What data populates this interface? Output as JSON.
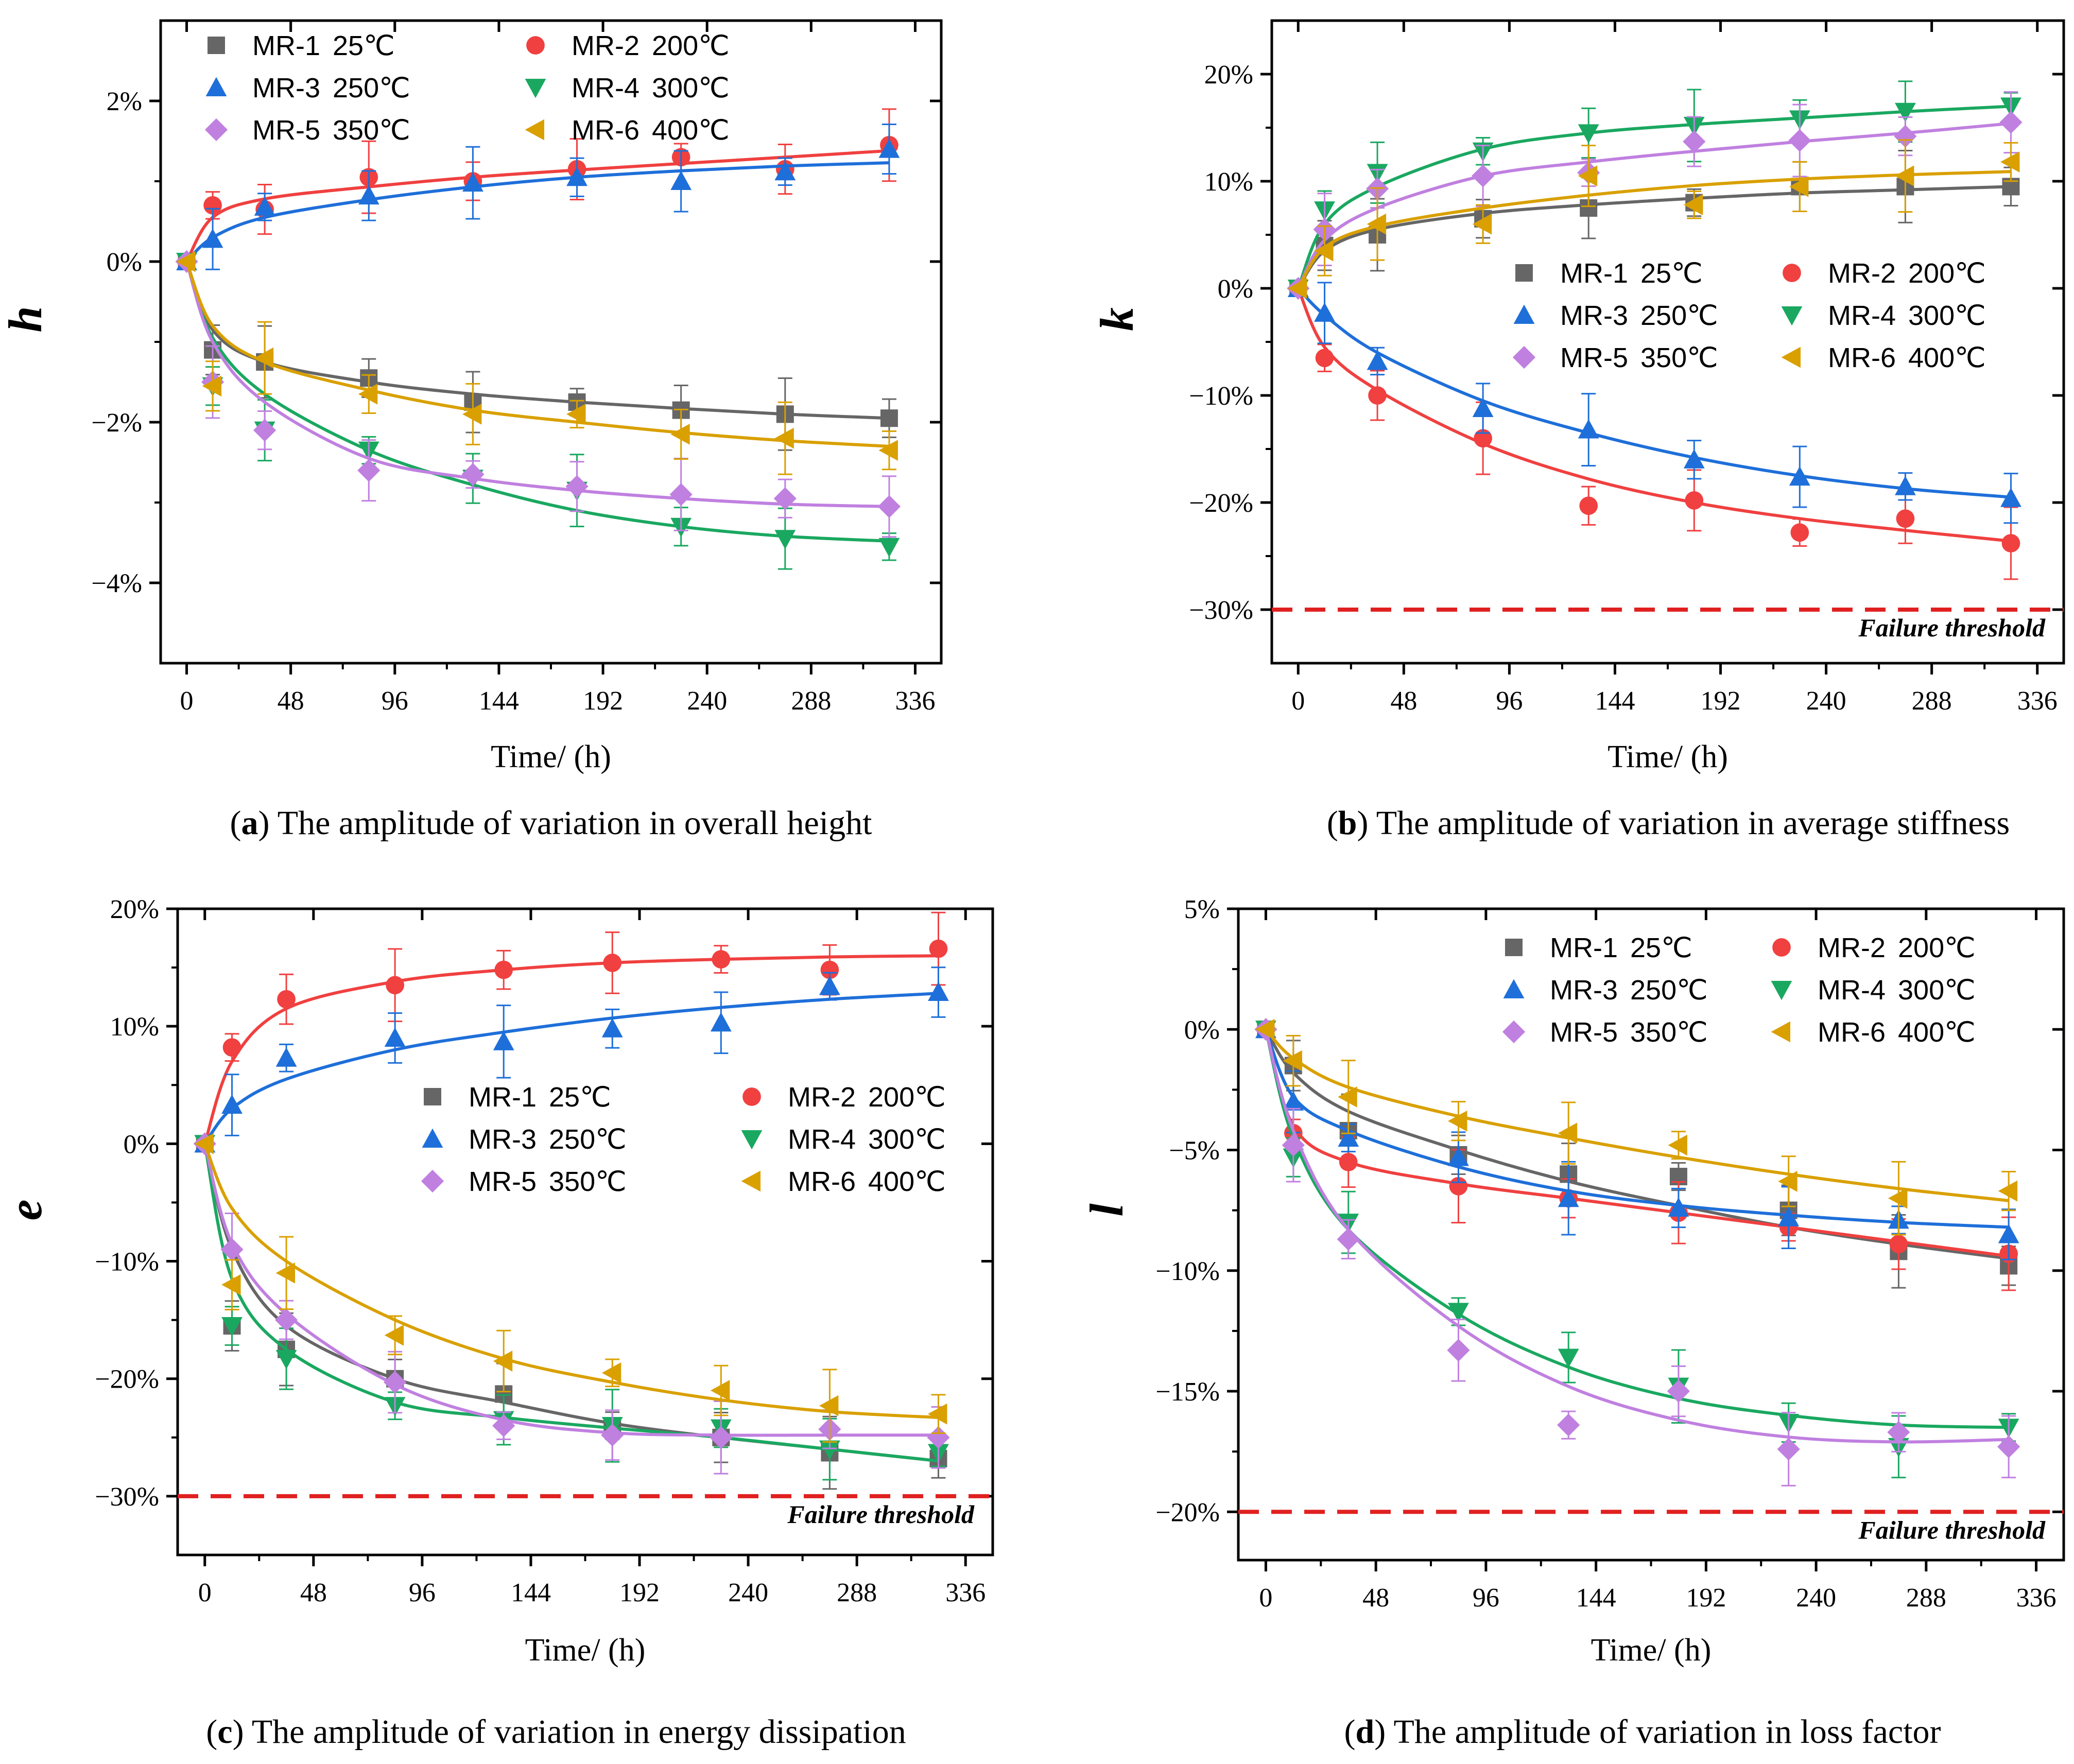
{
  "series_meta": [
    {
      "id": "MR-1",
      "temp": "25℃",
      "color": "#666666",
      "marker": "square"
    },
    {
      "id": "MR-2",
      "temp": "200℃",
      "color": "#f04040",
      "marker": "circle"
    },
    {
      "id": "MR-3",
      "temp": "250℃",
      "color": "#1e6fd9",
      "marker": "triangle-up"
    },
    {
      "id": "MR-4",
      "temp": "300℃",
      "color": "#1aa860",
      "marker": "triangle-down"
    },
    {
      "id": "MR-5",
      "temp": "350℃",
      "color": "#c080e0",
      "marker": "diamond"
    },
    {
      "id": "MR-6",
      "temp": "400℃",
      "color": "#d9a000",
      "marker": "triangle-left"
    }
  ],
  "threshold_color": "#e02020",
  "chart_data": [
    {
      "type": "scatter",
      "panel": "a",
      "caption_letter": "a",
      "caption_text": " The amplitude of variation in overall height",
      "ylabel": "h",
      "xlabel": "Time/ (h)",
      "xlim": [
        -12,
        348
      ],
      "ylim": [
        -5,
        3
      ],
      "xticks": [
        0,
        48,
        96,
        144,
        192,
        240,
        288,
        336
      ],
      "yticks": [
        2,
        0,
        -2,
        -4
      ],
      "ytick_labels": [
        "2%",
        "0%",
        "−2%",
        "−4%"
      ],
      "threshold": null,
      "threshold_label": "",
      "x": [
        0,
        12,
        36,
        84,
        132,
        180,
        228,
        276,
        324
      ],
      "series": [
        {
          "name": "MR-1",
          "values": [
            0,
            -1.1,
            -1.25,
            -1.45,
            -1.75,
            -1.75,
            -1.85,
            -1.9,
            -1.95
          ],
          "fit": [
            0,
            -0.85,
            -1.25,
            -1.5,
            -1.65,
            -1.75,
            -1.83,
            -1.9,
            -1.95
          ]
        },
        {
          "name": "MR-2",
          "values": [
            0,
            0.7,
            0.65,
            1.05,
            1.0,
            1.15,
            1.3,
            1.15,
            1.45
          ],
          "fit": [
            0,
            0.55,
            0.78,
            0.93,
            1.05,
            1.14,
            1.22,
            1.3,
            1.38
          ]
        },
        {
          "name": "MR-3",
          "values": [
            0,
            0.28,
            0.68,
            0.82,
            0.98,
            1.05,
            1.0,
            1.12,
            1.4
          ],
          "fit": [
            0,
            0.3,
            0.55,
            0.77,
            0.93,
            1.05,
            1.13,
            1.19,
            1.23
          ]
        },
        {
          "name": "MR-4",
          "values": [
            0,
            -1.55,
            -2.1,
            -2.35,
            -2.7,
            -2.85,
            -3.3,
            -3.45,
            -3.55
          ],
          "fit": [
            0,
            -0.95,
            -1.65,
            -2.35,
            -2.78,
            -3.1,
            -3.3,
            -3.42,
            -3.48
          ]
        },
        {
          "name": "MR-5",
          "values": [
            0,
            -1.5,
            -2.1,
            -2.6,
            -2.65,
            -2.8,
            -2.9,
            -2.95,
            -3.05
          ],
          "fit": [
            0,
            -1.0,
            -1.75,
            -2.45,
            -2.7,
            -2.85,
            -2.95,
            -3.02,
            -3.05
          ]
        },
        {
          "name": "MR-6",
          "values": [
            0,
            -1.55,
            -1.2,
            -1.65,
            -1.9,
            -1.9,
            -2.15,
            -2.2,
            -2.35
          ],
          "fit": [
            0,
            -0.8,
            -1.25,
            -1.6,
            -1.85,
            -2.0,
            -2.13,
            -2.23,
            -2.3
          ]
        }
      ]
    },
    {
      "type": "scatter",
      "panel": "b",
      "caption_letter": "b",
      "caption_text": " The amplitude of variation in average stiffness",
      "ylabel": "k",
      "xlabel": "Time/ (h)",
      "xlim": [
        -12,
        348
      ],
      "ylim": [
        -35,
        25
      ],
      "xticks": [
        0,
        48,
        96,
        144,
        192,
        240,
        288,
        336
      ],
      "yticks": [
        20,
        10,
        0,
        -10,
        -20,
        -30
      ],
      "ytick_labels": [
        "20%",
        "10%",
        "0%",
        "−10%",
        "−20%",
        "−30%"
      ],
      "threshold": -30,
      "threshold_label": "Failure threshold",
      "x": [
        0,
        12,
        36,
        84,
        132,
        180,
        228,
        276,
        324
      ],
      "series": [
        {
          "name": "MR-1",
          "values": [
            0,
            4.0,
            5.0,
            6.5,
            7.5,
            8.0,
            9.5,
            9.5,
            9.5
          ],
          "fit": [
            0,
            3.5,
            5.5,
            7.0,
            7.8,
            8.4,
            8.9,
            9.2,
            9.5
          ]
        },
        {
          "name": "MR-2",
          "values": [
            0,
            -6.5,
            -10.0,
            -14.0,
            -20.3,
            -19.8,
            -22.8,
            -21.5,
            -23.8
          ],
          "fit": [
            0,
            -5.5,
            -9.5,
            -14.5,
            -17.8,
            -20.0,
            -21.5,
            -22.6,
            -23.6
          ]
        },
        {
          "name": "MR-3",
          "values": [
            0,
            -2.3,
            -6.8,
            -11.2,
            -13.2,
            -16.0,
            -17.6,
            -18.5,
            -19.6
          ],
          "fit": [
            0,
            -2.5,
            -6.0,
            -10.5,
            -13.5,
            -15.8,
            -17.5,
            -18.7,
            -19.5
          ]
        },
        {
          "name": "MR-4",
          "values": [
            0,
            7.3,
            10.8,
            12.8,
            14.5,
            15.2,
            15.8,
            16.5,
            17.0
          ],
          "fit": [
            0,
            6.0,
            9.5,
            13.0,
            14.5,
            15.3,
            15.9,
            16.5,
            17.0
          ]
        },
        {
          "name": "MR-5",
          "values": [
            0,
            5.5,
            9.3,
            10.5,
            10.8,
            13.7,
            13.8,
            14.2,
            15.5
          ],
          "fit": [
            0,
            4.5,
            7.5,
            10.5,
            11.8,
            12.8,
            13.7,
            14.5,
            15.4
          ]
        },
        {
          "name": "MR-6",
          "values": [
            0,
            3.5,
            6.0,
            6.0,
            10.5,
            7.8,
            9.5,
            10.5,
            11.8
          ],
          "fit": [
            0,
            3.8,
            5.8,
            7.5,
            8.7,
            9.6,
            10.2,
            10.6,
            10.9
          ]
        }
      ]
    },
    {
      "type": "scatter",
      "panel": "c",
      "caption_letter": "c",
      "caption_text": " The amplitude of variation in energy dissipation",
      "ylabel": "e",
      "xlabel": "Time/ (h)",
      "xlim": [
        -12,
        348
      ],
      "ylim": [
        -35,
        20
      ],
      "xticks": [
        0,
        48,
        96,
        144,
        192,
        240,
        288,
        336
      ],
      "yticks": [
        20,
        10,
        0,
        -10,
        -20,
        -30
      ],
      "ytick_labels": [
        "20%",
        "10%",
        "0%",
        "−10%",
        "−20%",
        "−30%"
      ],
      "threshold": -30,
      "threshold_label": "Failure threshold",
      "x": [
        0,
        12,
        36,
        84,
        132,
        180,
        228,
        276,
        324
      ],
      "series": [
        {
          "name": "MR-1",
          "values": [
            0,
            -15.5,
            -17.5,
            -20.0,
            -21.3,
            -24.0,
            -25.0,
            -26.3,
            -26.8
          ],
          "fit": [
            0,
            -9.0,
            -15.5,
            -20.0,
            -22.0,
            -23.8,
            -25.0,
            -26.0,
            -27.0
          ]
        },
        {
          "name": "MR-2",
          "values": [
            0,
            8.2,
            12.3,
            13.5,
            14.8,
            15.4,
            15.7,
            14.8,
            16.6
          ],
          "fit": [
            0,
            7.0,
            11.5,
            13.8,
            14.8,
            15.4,
            15.7,
            15.9,
            16.0
          ]
        },
        {
          "name": "MR-3",
          "values": [
            0,
            3.3,
            7.3,
            9.0,
            8.7,
            9.8,
            10.3,
            13.4,
            12.9
          ],
          "fit": [
            0,
            3.0,
            5.5,
            8.0,
            9.5,
            10.7,
            11.6,
            12.3,
            12.8
          ]
        },
        {
          "name": "MR-4",
          "values": [
            0,
            -15.5,
            -18.3,
            -22.3,
            -23.5,
            -24.0,
            -24.2,
            -26.0,
            -26.3
          ],
          "fit": [
            0,
            -11.5,
            -17.5,
            -22.0,
            -23.3,
            -24.2,
            -25.0,
            -26.0,
            -27.0
          ]
        },
        {
          "name": "MR-5",
          "values": [
            0,
            -9.0,
            -15.0,
            -20.3,
            -24.0,
            -24.8,
            -25.0,
            -24.3,
            -25.0
          ],
          "fit": [
            0,
            -8.5,
            -14.5,
            -20.5,
            -23.5,
            -24.6,
            -24.8,
            -24.8,
            -24.8
          ]
        },
        {
          "name": "MR-6",
          "values": [
            0,
            -12.0,
            -11.0,
            -16.3,
            -18.5,
            -19.5,
            -21.0,
            -22.3,
            -23.0
          ],
          "fit": [
            0,
            -5.5,
            -10.0,
            -15.0,
            -18.3,
            -20.3,
            -21.8,
            -22.8,
            -23.3
          ]
        }
      ]
    },
    {
      "type": "scatter",
      "panel": "d",
      "caption_letter": "d",
      "caption_text": " The amplitude of variation in loss factor",
      "ylabel": "l",
      "xlabel": "Time/ (h)",
      "xlim": [
        -12,
        348
      ],
      "ylim": [
        -22,
        5
      ],
      "xticks": [
        0,
        48,
        96,
        144,
        192,
        240,
        288,
        336
      ],
      "yticks": [
        5,
        0,
        -5,
        -10,
        -15,
        -20
      ],
      "ytick_labels": [
        "5%",
        "0%",
        "−5%",
        "−10%",
        "−15%",
        "−20%"
      ],
      "threshold": -20,
      "threshold_label": "Failure threshold",
      "x": [
        0,
        12,
        36,
        84,
        132,
        180,
        228,
        276,
        324
      ],
      "series": [
        {
          "name": "MR-1",
          "values": [
            0,
            -1.5,
            -4.2,
            -5.2,
            -6.0,
            -6.1,
            -7.5,
            -9.2,
            -9.8
          ],
          "fit": [
            0,
            -1.8,
            -3.4,
            -5.0,
            -6.3,
            -7.3,
            -8.2,
            -8.9,
            -9.5
          ]
        },
        {
          "name": "MR-2",
          "values": [
            0,
            -4.3,
            -5.5,
            -6.5,
            -7.0,
            -7.6,
            -8.2,
            -8.9,
            -9.3
          ],
          "fit": [
            0,
            -4.0,
            -5.5,
            -6.4,
            -7.0,
            -7.6,
            -8.2,
            -8.8,
            -9.4
          ]
        },
        {
          "name": "MR-3",
          "values": [
            0,
            -3.0,
            -4.5,
            -5.3,
            -7.0,
            -7.4,
            -7.8,
            -7.9,
            -8.5
          ],
          "fit": [
            0,
            -2.8,
            -4.2,
            -5.7,
            -6.7,
            -7.3,
            -7.7,
            -8.0,
            -8.2
          ]
        },
        {
          "name": "MR-4",
          "values": [
            0,
            -5.3,
            -8.0,
            -11.7,
            -13.6,
            -14.8,
            -16.3,
            -17.3,
            -16.5
          ],
          "fit": [
            0,
            -4.5,
            -8.3,
            -11.8,
            -14.0,
            -15.3,
            -16.0,
            -16.4,
            -16.5
          ]
        },
        {
          "name": "MR-5",
          "values": [
            0,
            -4.8,
            -8.7,
            -13.3,
            -16.4,
            -15.0,
            -17.4,
            -16.7,
            -17.3
          ],
          "fit": [
            0,
            -4.2,
            -8.3,
            -12.3,
            -14.8,
            -16.2,
            -16.9,
            -17.1,
            -17.0
          ]
        },
        {
          "name": "MR-6",
          "values": [
            0,
            -1.3,
            -2.8,
            -3.8,
            -4.3,
            -4.8,
            -6.3,
            -7.0,
            -6.7
          ],
          "fit": [
            0,
            -1.2,
            -2.4,
            -3.6,
            -4.5,
            -5.3,
            -6.0,
            -6.6,
            -7.1
          ]
        }
      ]
    }
  ]
}
